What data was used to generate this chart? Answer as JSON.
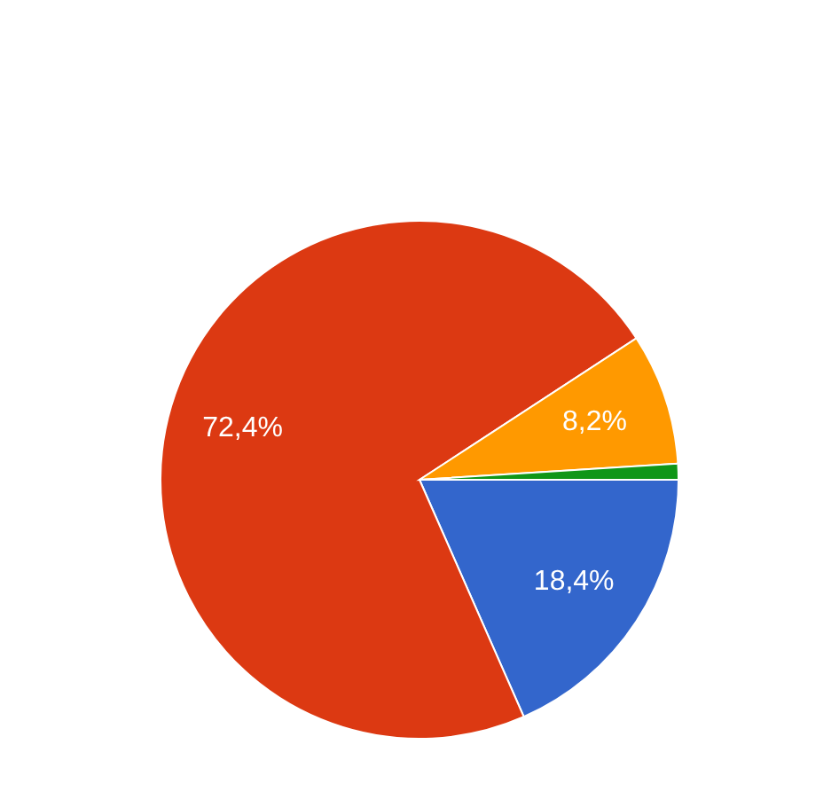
{
  "chart_data": {
    "type": "pie",
    "categories": [
      null,
      null,
      null,
      null
    ],
    "values": [
      18.4,
      72.4,
      8.2,
      1.0
    ],
    "colors": [
      "#3366cc",
      "#dc3912",
      "#ff9900",
      "#109618"
    ],
    "value_labels": [
      "18,4%",
      "72,4%",
      "8,2%",
      null
    ]
  }
}
